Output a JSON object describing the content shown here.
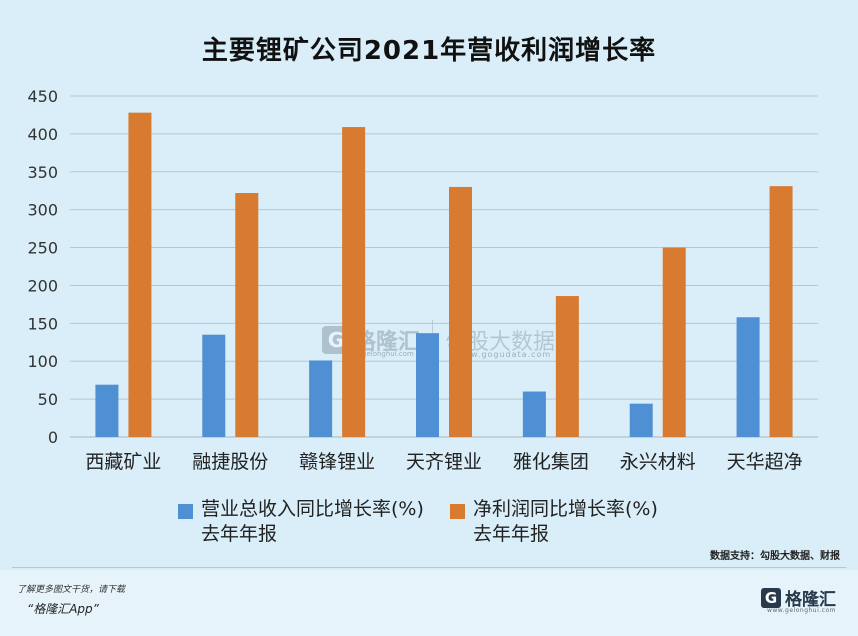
{
  "chart_data": {
    "type": "bar",
    "title": "主要锂矿公司2021年营收利润增长率",
    "categories": [
      "西藏矿业",
      "融捷股份",
      "赣锋锂业",
      "天齐锂业",
      "雅化集团",
      "永兴材料",
      "天华超净"
    ],
    "series": [
      {
        "name": "营业总收入同比增长率(%)",
        "name_line2": "去年年报",
        "color": "#4f8fd3",
        "values": [
          69,
          135,
          101,
          137,
          60,
          44,
          158
        ]
      },
      {
        "name": "净利润同比增长率(%)",
        "name_line2": "去年年报",
        "color": "#d87a30",
        "values": [
          428,
          322,
          409,
          330,
          186,
          250,
          331
        ]
      }
    ],
    "yticks": [
      "0",
      "50",
      "100",
      "150",
      "200",
      "250",
      "300",
      "350",
      "400",
      "450"
    ],
    "ylim": [
      0,
      450
    ],
    "grid": true,
    "legend": "bottom"
  },
  "source": "数据支持：勾股大数据、财报",
  "footer": {
    "line1": "了解更多图文干货，请下载",
    "line2": "“格隆汇App”"
  },
  "logo": {
    "mark": "G",
    "text": "格隆汇",
    "sub": "www.gelonghui.com"
  },
  "watermark": {
    "mark": "G",
    "left": "格隆汇",
    "left_sub": "gelonghui.com",
    "right": "勾股大数据",
    "right_sub": "www.gogudata.com"
  }
}
